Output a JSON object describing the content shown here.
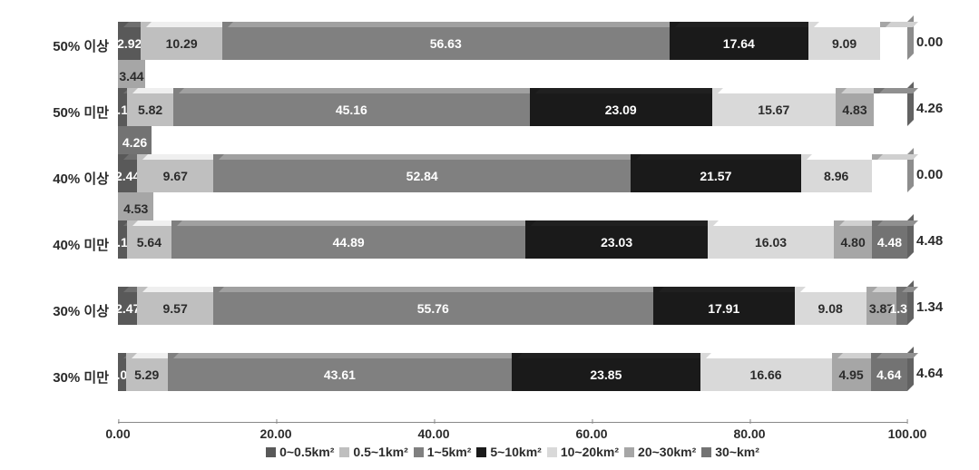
{
  "chart": {
    "type": "stacked-bar-horizontal",
    "background_color": "#ffffff",
    "xlim": [
      0,
      100
    ],
    "xtick_step": 20,
    "xtick_labels": [
      "0.00",
      "20.00",
      "40.00",
      "60.00",
      "80.00",
      "100.00"
    ],
    "label_fontsize": 15,
    "label_fontweight": "bold",
    "label_color": "#2b2b2b",
    "value_fontsize": 14,
    "categories": [
      "50% 이상",
      "50% 미만",
      "40% 이상",
      "40% 미만",
      "30% 이상",
      "30% 미만"
    ],
    "series": [
      {
        "name": "0~0.5km²",
        "color": "#595959",
        "text_color": "#ffffff"
      },
      {
        "name": "0.5~1km²",
        "color": "#bfbfbf",
        "text_color": "#2b2b2b"
      },
      {
        "name": "1~5km²",
        "color": "#808080",
        "text_color": "#ffffff"
      },
      {
        "name": "5~10km²",
        "color": "#1a1a1a",
        "text_color": "#ffffff"
      },
      {
        "name": "10~20km²",
        "color": "#d9d9d9",
        "text_color": "#2b2b2b"
      },
      {
        "name": "20~30km²",
        "color": "#a6a6a6",
        "text_color": "#2b2b2b"
      },
      {
        "name": "30~km²",
        "color": "#737373",
        "text_color": "#ffffff"
      }
    ],
    "rows": [
      {
        "label": "50% 이상",
        "values": [
          2.92,
          10.29,
          56.63,
          17.64,
          9.09,
          3.44,
          0.0
        ],
        "end_label": "0.00"
      },
      {
        "label": "50% 미만",
        "values": [
          1.18,
          5.82,
          45.16,
          23.09,
          15.67,
          4.83,
          4.26
        ],
        "end_label": "4.26"
      },
      {
        "label": "40% 이상",
        "values": [
          2.44,
          9.67,
          52.84,
          21.57,
          8.96,
          4.53,
          0.0
        ],
        "end_label": "0.00"
      },
      {
        "label": "40% 미만",
        "values": [
          1.13,
          5.64,
          44.89,
          23.03,
          16.03,
          4.8,
          4.48
        ],
        "end_label": "4.48"
      },
      {
        "label": "30% 이상",
        "values": [
          2.47,
          9.57,
          55.76,
          17.91,
          9.08,
          3.87,
          1.34
        ],
        "end_label": "1.34"
      },
      {
        "label": "30% 미만",
        "values": [
          1.0,
          5.29,
          43.61,
          23.85,
          16.66,
          4.95,
          4.64
        ],
        "end_label": "4.64"
      }
    ]
  }
}
